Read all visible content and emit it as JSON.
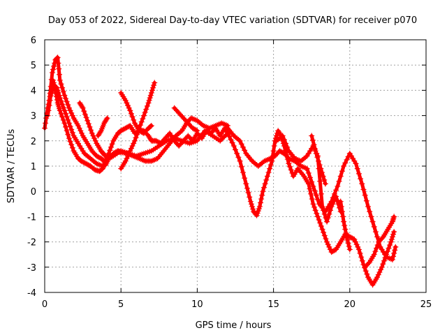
{
  "chart_data": {
    "type": "scatter",
    "title": "Day 053 of 2022, Sidereal Day-to-day VTEC variation (SDTVAR) for receiver p070",
    "xlabel": "GPS time / hours",
    "ylabel": "SDTVAR / TECUs",
    "xlim": [
      0,
      25
    ],
    "ylim": [
      -4,
      6
    ],
    "xticks": [
      0,
      5,
      10,
      15,
      20,
      25
    ],
    "yticks": [
      -4,
      -3,
      -2,
      -1,
      0,
      1,
      2,
      3,
      4,
      5,
      6
    ],
    "grid": true,
    "marker": "+",
    "series": [
      {
        "name": "SDTVAR",
        "color": "#ff0000",
        "tracks": [
          {
            "x": [
              0.0,
              0.2,
              0.4,
              0.55,
              0.7,
              0.85,
              1.0,
              1.3,
              1.6,
              1.9,
              2.2,
              2.4,
              2.7,
              3.0,
              3.3,
              3.6,
              3.8,
              4.0,
              4.2,
              4.5,
              4.8,
              5.0,
              5.3,
              5.6,
              5.9,
              6.2,
              6.5,
              6.8,
              7.0,
              7.3,
              7.6,
              7.9,
              8.2,
              8.5,
              8.8,
              9.1,
              9.4,
              9.7,
              10.0,
              10.3,
              10.6,
              10.9,
              11.2,
              11.5,
              11.8,
              12.0
            ],
            "y": [
              2.5,
              3.3,
              3.9,
              4.4,
              4.0,
              3.5,
              3.2,
              2.7,
              2.1,
              1.6,
              1.3,
              1.2,
              1.1,
              1.0,
              0.85,
              0.8,
              0.9,
              1.2,
              1.5,
              2.0,
              2.3,
              2.4,
              2.5,
              2.6,
              2.3,
              2.4,
              2.4,
              2.2,
              2.0,
              2.0,
              1.9,
              2.1,
              2.3,
              2.0,
              1.8,
              2.0,
              2.2,
              2.0,
              2.3,
              2.1,
              2.4,
              2.3,
              2.5,
              2.2,
              2.5,
              2.3
            ]
          },
          {
            "x": [
              0.2,
              0.4,
              0.6,
              0.8,
              1.0,
              1.3,
              1.6,
              1.9,
              2.2,
              2.6,
              3.0,
              3.4,
              3.8,
              4.0,
              4.2,
              4.5,
              4.8,
              5.0,
              5.4,
              5.8,
              6.2,
              6.6,
              7.0,
              7.4,
              7.8,
              8.2,
              8.6,
              9.0,
              9.3,
              9.6,
              10.0,
              10.4,
              10.8,
              11.2,
              11.6,
              12.0
            ],
            "y": [
              3.0,
              3.8,
              4.2,
              4.1,
              3.7,
              3.2,
              2.7,
              2.2,
              1.9,
              1.5,
              1.3,
              1.1,
              1.0,
              1.05,
              1.3,
              1.5,
              1.6,
              1.55,
              1.5,
              1.4,
              1.3,
              1.2,
              1.2,
              1.3,
              1.6,
              1.9,
              2.2,
              2.4,
              2.7,
              2.9,
              2.8,
              2.6,
              2.5,
              2.6,
              2.7,
              2.6
            ]
          },
          {
            "x": [
              0.3,
              0.5,
              0.7,
              0.85,
              1.0,
              1.3,
              1.6,
              1.9,
              2.2,
              2.5,
              2.8,
              3.1,
              3.4,
              3.7,
              3.9,
              4.1,
              4.5,
              5.0,
              5.5,
              6.0,
              6.5,
              7.0,
              7.5,
              8.0,
              8.5,
              9.0,
              9.5,
              10.0,
              10.5,
              11.0,
              11.5,
              12.0
            ],
            "y": [
              3.6,
              4.7,
              5.2,
              5.3,
              4.4,
              3.8,
              3.3,
              2.9,
              2.6,
              2.2,
              1.9,
              1.6,
              1.4,
              1.3,
              1.2,
              1.25,
              1.4,
              1.6,
              1.5,
              1.4,
              1.5,
              1.6,
              1.8,
              2.0,
              2.1,
              2.0,
              1.9,
              2.0,
              2.4,
              2.2,
              2.0,
              2.3
            ]
          },
          {
            "x": [
              2.3,
              2.5,
              2.8,
              3.1,
              3.4,
              3.7,
              3.9,
              4.0
            ],
            "y": [
              3.5,
              3.3,
              2.8,
              2.3,
              1.9,
              1.6,
              1.45,
              1.4
            ]
          },
          {
            "x": [
              3.5,
              3.7,
              3.9,
              4.1
            ],
            "y": [
              2.2,
              2.4,
              2.7,
              2.9
            ]
          },
          {
            "x": [
              5.0,
              5.3,
              5.6,
              5.9,
              6.2,
              6.5,
              6.8,
              7.0
            ],
            "y": [
              3.9,
              3.6,
              3.2,
              2.7,
              2.4,
              2.3,
              2.5,
              2.6
            ]
          },
          {
            "x": [
              5.0,
              5.3,
              5.6,
              5.9,
              6.2,
              6.5,
              6.8,
              7.0,
              7.2
            ],
            "y": [
              0.9,
              1.2,
              1.6,
              2.0,
              2.5,
              3.0,
              3.5,
              3.9,
              4.3
            ]
          },
          {
            "x": [
              8.5,
              8.8,
              9.1,
              9.4,
              9.7,
              10.0
            ],
            "y": [
              3.3,
              3.1,
              2.9,
              2.7,
              2.5,
              2.4
            ]
          },
          {
            "x": [
              12.0,
              12.4,
              12.8,
              13.2,
              13.5,
              13.7,
              13.9,
              14.1,
              14.3,
              14.6,
              14.9,
              15.1,
              15.3,
              15.5,
              15.7,
              16.0,
              16.3,
              16.6,
              17.0,
              17.3,
              17.6,
              17.9,
              18.2,
              18.5,
              18.8,
              19.1,
              19.4,
              19.7,
              20.0,
              20.3,
              20.6,
              20.9,
              21.2,
              21.5,
              21.8,
              22.1,
              22.4,
              22.7,
              22.9
            ],
            "y": [
              2.3,
              1.8,
              1.2,
              0.3,
              -0.4,
              -0.8,
              -0.95,
              -0.6,
              0.0,
              0.6,
              1.2,
              2.0,
              2.4,
              2.2,
              1.8,
              1.1,
              0.6,
              0.9,
              0.6,
              0.3,
              -0.5,
              -1.0,
              -1.5,
              -2.0,
              -2.4,
              -2.3,
              -2.0,
              -1.7,
              -1.8,
              -1.9,
              -2.3,
              -2.9,
              -3.4,
              -3.7,
              -3.4,
              -3.0,
              -2.5,
              -2.0,
              -1.6
            ]
          },
          {
            "x": [
              12.0,
              12.4,
              12.8,
              13.2,
              13.6,
              14.0,
              14.4,
              14.8,
              15.1,
              15.4,
              15.7,
              16.0,
              16.4,
              16.8,
              17.2,
              17.6,
              18.0,
              18.4,
              18.8,
              19.2,
              19.6,
              20.0,
              20.4,
              20.8,
              21.2,
              21.6,
              22.0,
              22.4,
              22.8,
              23.0
            ],
            "y": [
              2.5,
              2.2,
              2.0,
              1.5,
              1.2,
              1.0,
              1.2,
              1.3,
              1.4,
              1.6,
              1.5,
              1.3,
              1.2,
              1.0,
              0.9,
              0.2,
              -0.5,
              -0.8,
              -0.4,
              0.2,
              1.0,
              1.5,
              1.1,
              0.3,
              -0.6,
              -1.4,
              -2.2,
              -2.6,
              -2.7,
              -2.2
            ]
          },
          {
            "x": [
              15.2,
              15.6,
              16.0,
              16.4,
              16.8,
              17.2,
              17.6,
              17.9,
              18.2,
              18.5,
              18.8,
              19.1,
              19.4
            ],
            "y": [
              2.0,
              2.2,
              1.6,
              1.3,
              1.2,
              1.4,
              1.8,
              1.4,
              -0.6,
              -1.2,
              -0.6,
              -0.2,
              -0.8
            ]
          },
          {
            "x": [
              21.0,
              21.3,
              21.6,
              21.9,
              22.2,
              22.5,
              22.8,
              22.9
            ],
            "y": [
              -3.0,
              -2.8,
              -2.5,
              -2.0,
              -1.8,
              -1.5,
              -1.2,
              -1.0
            ]
          },
          {
            "x": [
              17.5,
              17.8,
              18.1,
              18.4
            ],
            "y": [
              2.2,
              1.5,
              0.9,
              0.3
            ]
          },
          {
            "x": [
              19.4,
              19.6,
              19.8,
              20.0
            ],
            "y": [
              -0.4,
              -1.2,
              -1.8,
              -2.3
            ]
          }
        ]
      }
    ]
  }
}
